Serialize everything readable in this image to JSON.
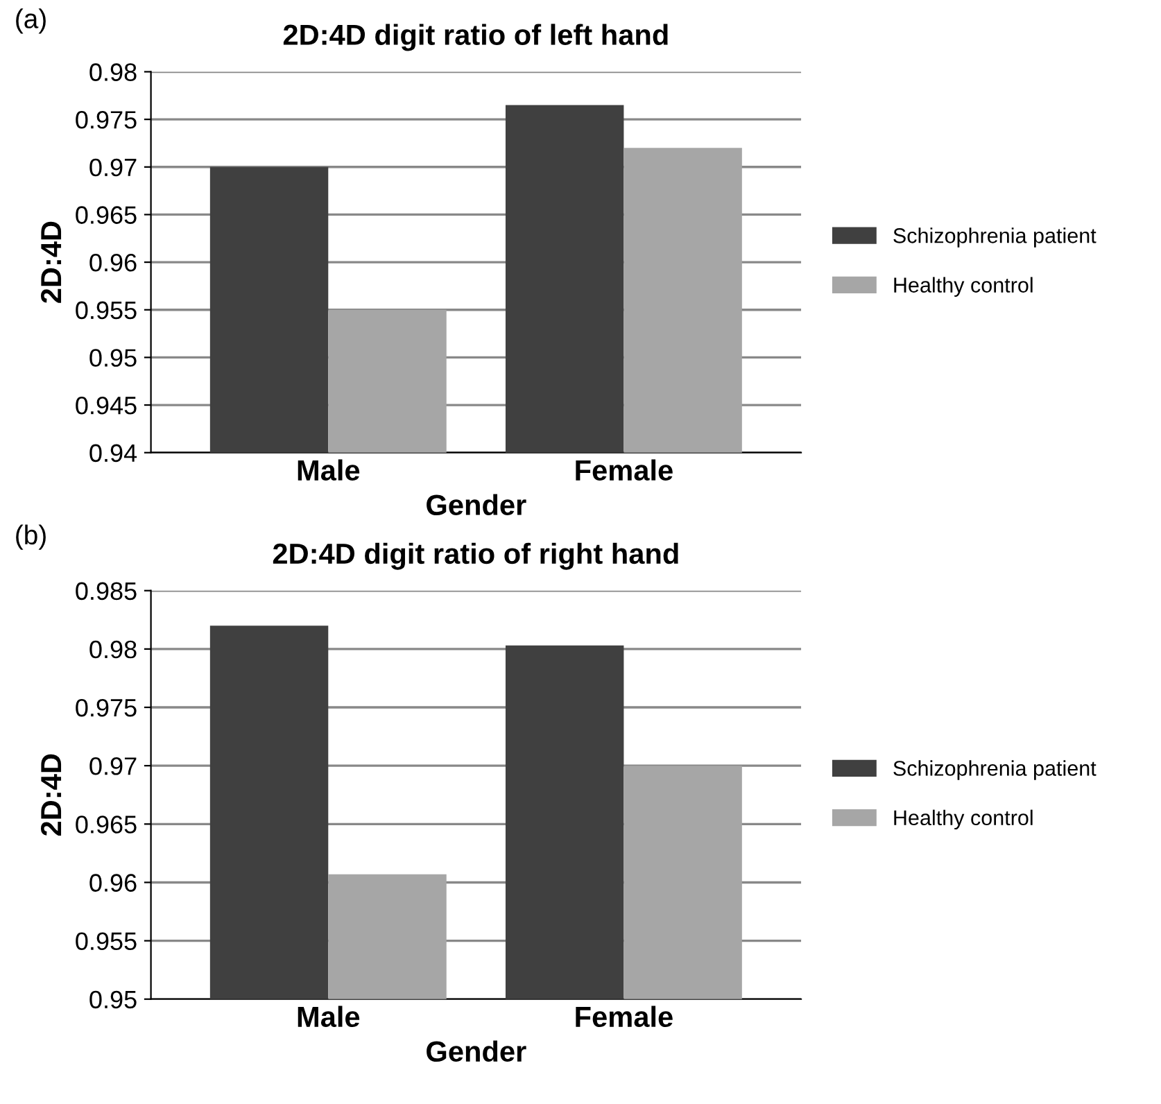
{
  "chart_data": [
    {
      "type": "bar",
      "title": "2D:4D digit ratio of left hand",
      "xlabel": "Gender",
      "ylabel": "2D:4D",
      "annotations": [
        "(a)"
      ],
      "categories": [
        "Male",
        "Female"
      ],
      "series": [
        {
          "name": "Schizophrenia patient",
          "color": "#404040",
          "values": [
            0.97,
            0.9765
          ]
        },
        {
          "name": "Healthy control",
          "color": "#a6a6a6",
          "values": [
            0.955,
            0.972
          ]
        }
      ],
      "ylim": [
        0.94,
        0.98
      ],
      "yticks": [
        0.94,
        0.945,
        0.95,
        0.955,
        0.96,
        0.965,
        0.97,
        0.975,
        0.98
      ],
      "grid": "y",
      "legend": "right"
    },
    {
      "type": "bar",
      "title": "2D:4D digit ratio of right hand",
      "xlabel": "Gender",
      "ylabel": "2D:4D",
      "annotations": [
        "(b)"
      ],
      "categories": [
        "Male",
        "Female"
      ],
      "series": [
        {
          "name": "Schizophrenia patient",
          "color": "#404040",
          "values": [
            0.982,
            0.9803
          ]
        },
        {
          "name": "Healthy control",
          "color": "#a6a6a6",
          "values": [
            0.9607,
            0.97
          ]
        }
      ],
      "ylim": [
        0.95,
        0.985
      ],
      "yticks": [
        0.95,
        0.955,
        0.96,
        0.965,
        0.97,
        0.975,
        0.98,
        0.985
      ],
      "grid": "y",
      "legend": "right"
    }
  ]
}
